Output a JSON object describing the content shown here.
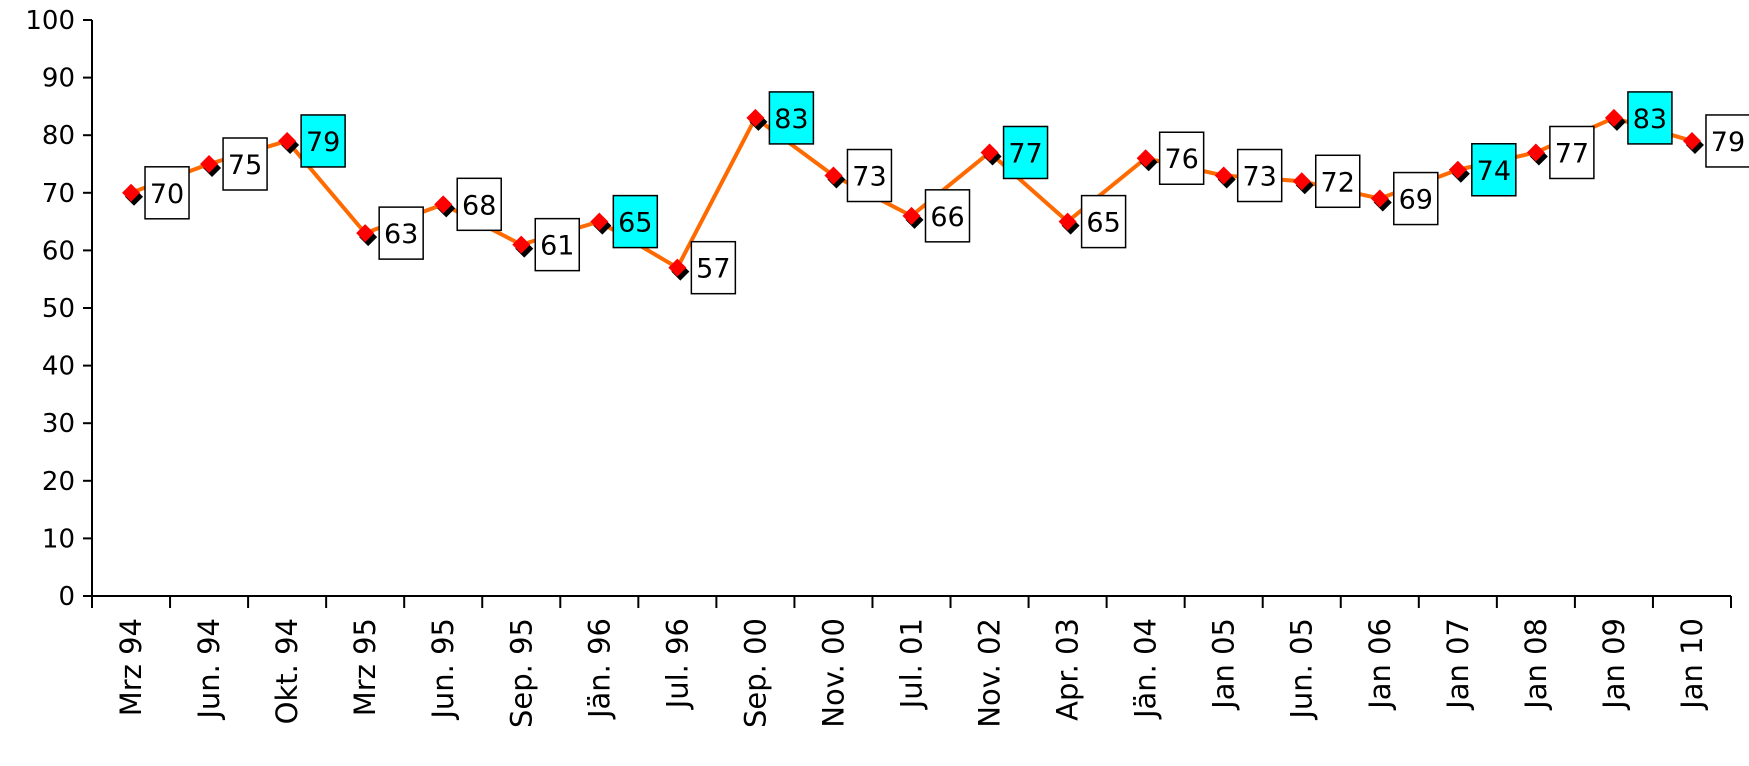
{
  "chart_data": {
    "type": "line",
    "title": "",
    "xlabel": "",
    "ylabel": "",
    "ylim": [
      0,
      100
    ],
    "yticks": [
      0,
      10,
      20,
      30,
      40,
      50,
      60,
      70,
      80,
      90,
      100
    ],
    "grid": false,
    "legend": "none",
    "categories": [
      "Mrz 94",
      "Jun. 94",
      "Okt. 94",
      "Mrz 95",
      "Jun. 95",
      "Sep. 95",
      "Jän. 96",
      "Jul. 96",
      "Sep. 00",
      "Nov. 00",
      "Jul. 01",
      "Nov. 02",
      "Apr. 03",
      "Jän. 04",
      "Jan 05",
      "Jun. 05",
      "Jan 06",
      "Jan 07",
      "Jan 08",
      "Jan 09",
      "Jan 10"
    ],
    "series": [
      {
        "values": [
          70,
          75,
          79,
          63,
          68,
          61,
          65,
          57,
          83,
          73,
          66,
          77,
          65,
          76,
          73,
          72,
          69,
          74,
          77,
          83,
          79
        ],
        "line_color": "#ff6a00",
        "marker_color": "#ff0000"
      }
    ],
    "data_labels": [
      "70",
      "75",
      "79",
      "63",
      "68",
      "61",
      "65",
      "57",
      "83",
      "73",
      "66",
      "77",
      "65",
      "76",
      "73",
      "72",
      "69",
      "74",
      "77",
      "83",
      "79"
    ],
    "highlighted_indices": [
      2,
      6,
      8,
      11,
      17,
      19
    ],
    "highlight_color": "#00ffff",
    "label_box_color": "#ffffff"
  }
}
